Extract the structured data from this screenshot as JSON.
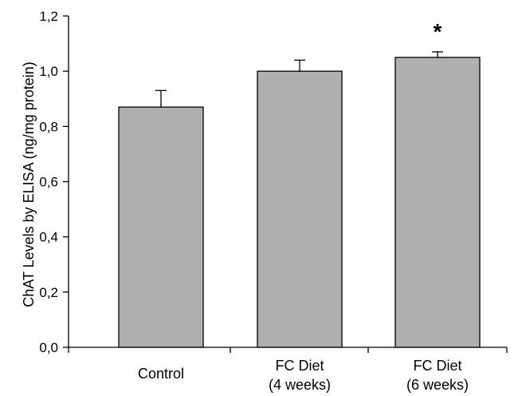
{
  "chart_data": {
    "type": "bar",
    "categories": [
      [
        "Control"
      ],
      [
        "FC Diet",
        "(4 weeks)"
      ],
      [
        "FC Diet",
        "(6 weeks)"
      ]
    ],
    "values": [
      0.87,
      1.0,
      1.05
    ],
    "errors": [
      0.06,
      0.04,
      0.02
    ],
    "annotations": [
      "",
      "",
      "*"
    ],
    "ylabel": "ChAT Levels by ELISA (ng/mg protein)",
    "xlabel": "",
    "title": "",
    "ylim": [
      0,
      1.2
    ],
    "yticks": [
      "0,0",
      "0,2",
      "0,4",
      "0,6",
      "0,8",
      "1,0",
      "1,2"
    ],
    "bar_color": "#b0b0b0",
    "grid": false
  }
}
